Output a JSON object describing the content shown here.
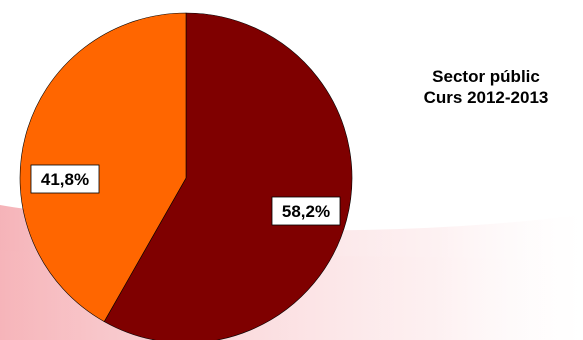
{
  "chart_data": {
    "type": "pie",
    "title": [
      "Sector públic",
      "Curs 2012-2013"
    ],
    "slices": [
      {
        "label": "58,2%",
        "value": 58.2,
        "color": "#7f0000"
      },
      {
        "label": "41,8%",
        "value": 41.8,
        "color": "#ff6600"
      }
    ],
    "start": "12 o'clock",
    "direction": "clockwise",
    "legend": "none"
  },
  "colors": {
    "background": "#ffffff",
    "swoosh": "#f7c9cc",
    "label_box": "#ffffff",
    "slice_border": "#000000"
  }
}
